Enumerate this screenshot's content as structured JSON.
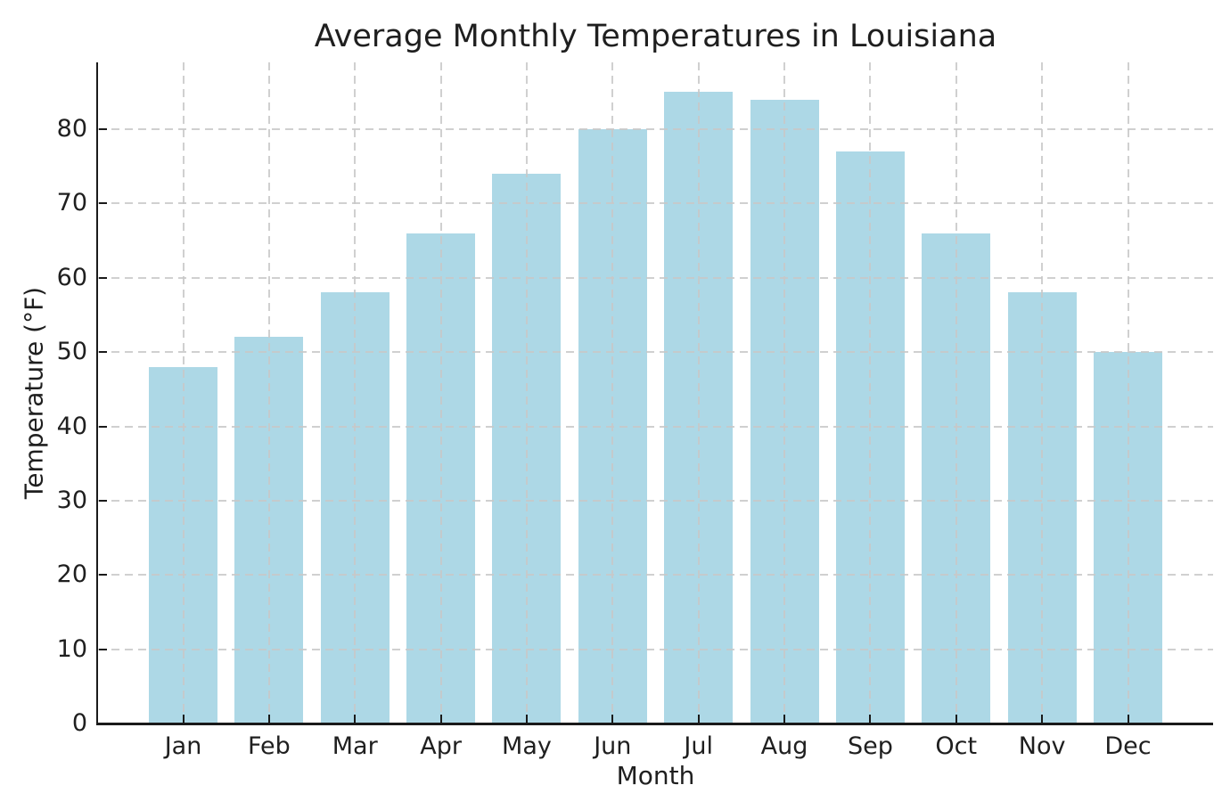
{
  "chart_data": {
    "type": "bar",
    "title": "Average Monthly Temperatures in Louisiana",
    "xlabel": "Month",
    "ylabel": "Temperature (°F)",
    "categories": [
      "Jan",
      "Feb",
      "Mar",
      "Apr",
      "May",
      "Jun",
      "Jul",
      "Aug",
      "Sep",
      "Oct",
      "Nov",
      "Dec"
    ],
    "values": [
      48,
      52,
      58,
      66,
      74,
      80,
      85,
      84,
      77,
      66,
      58,
      50
    ],
    "yticks": [
      0,
      10,
      20,
      30,
      40,
      50,
      60,
      70,
      80
    ],
    "ylim": [
      0,
      89
    ],
    "grid": true,
    "grid_style": "dashed",
    "grid_above_bars": true,
    "tick_direction": "in",
    "legend": "none",
    "colors": {
      "bar_fill": "#ADD8E6",
      "grid_line": "#c8c8c8",
      "axis_spine": "#1a1a1a",
      "tick_mark": "#1a1a1a",
      "text": "#1f1f1f",
      "background": "#ffffff"
    }
  }
}
